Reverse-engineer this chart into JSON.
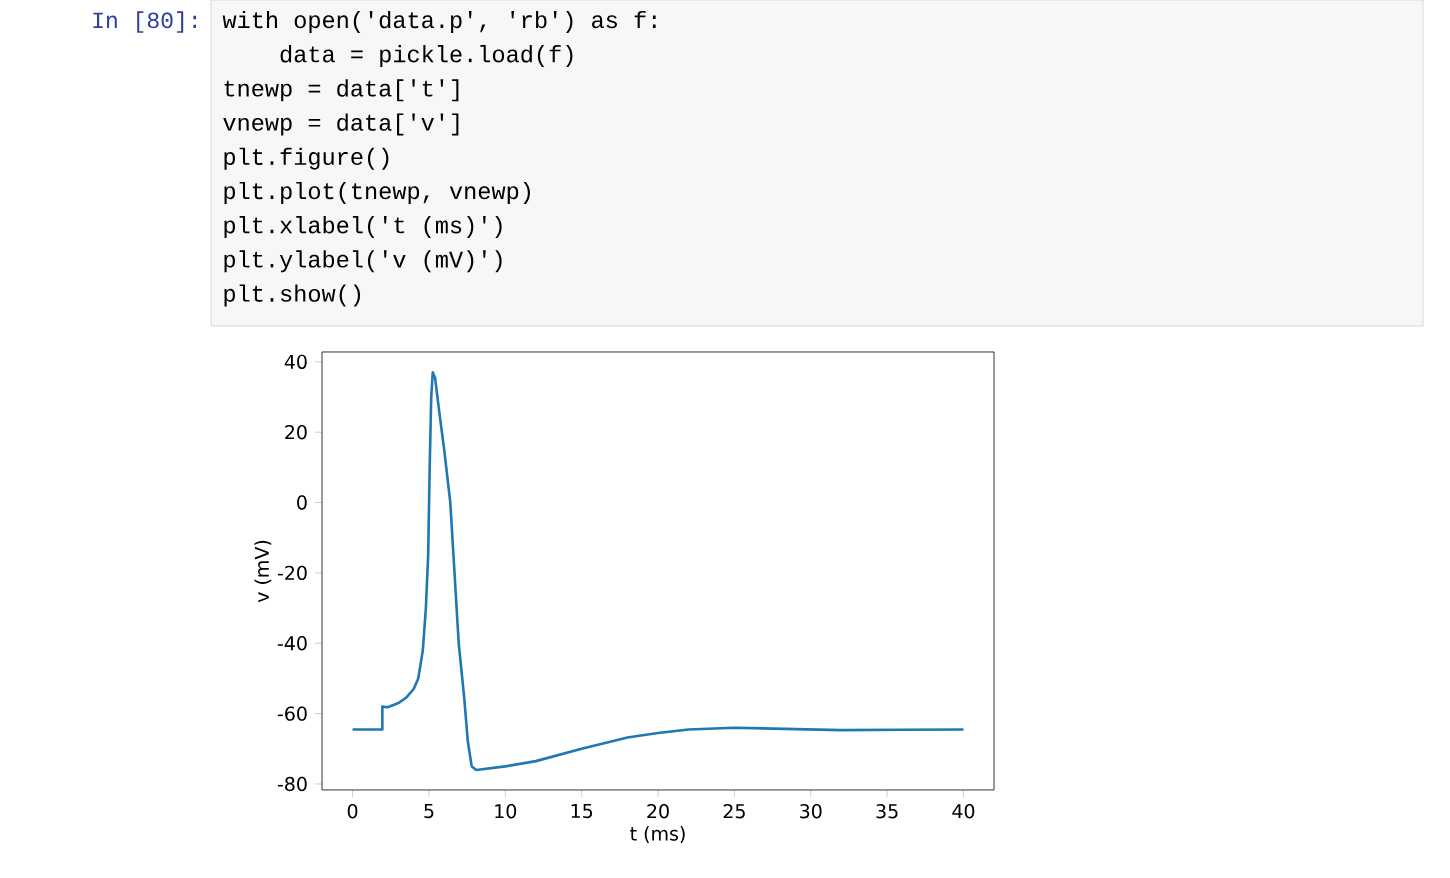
{
  "chart_data": {
    "type": "line",
    "xlabel": "t (ms)",
    "ylabel": "v (mV)",
    "annotations": [
      "In [80]:",
      "with open('data.p', 'rb') as f:",
      "    data = pickle.load(f)",
      "tnewp = data['t']",
      "vnewp = data['v']",
      "plt.figure()",
      "plt.plot(tnewp, vnewp)",
      "plt.xlabel('t (ms)')",
      "plt.ylabel('v (mV)')",
      "plt.show()"
    ],
    "xlim": [
      -2,
      42
    ],
    "ylim": [
      -81.7,
      42.8
    ],
    "xticks": [
      0,
      5,
      10,
      15,
      20,
      25,
      30,
      35,
      40
    ],
    "yticks": [
      -80,
      -60,
      -40,
      -20,
      0,
      20,
      40
    ],
    "grid": false,
    "series": [
      {
        "color": "#1f77b4",
        "x": [
          0,
          1.95,
          1.95,
          2.3,
          3,
          3.5,
          4,
          4.3,
          4.6,
          4.8,
          4.95,
          5.05,
          5.15,
          5.25,
          5.4,
          5.7,
          6.0,
          6.4,
          6.95,
          7.3,
          7.55,
          7.8,
          8.1,
          10,
          12,
          15,
          18,
          20,
          22,
          25,
          28,
          32,
          36,
          40
        ],
        "values": [
          -64.5,
          -64.5,
          -58,
          -58.2,
          -57,
          -55.5,
          -53,
          -50,
          -42,
          -30,
          -15,
          10,
          30,
          37,
          35.5,
          25,
          15,
          0,
          -40,
          -55,
          -68,
          -75,
          -76,
          -75,
          -73.5,
          -70,
          -66.8,
          -65.5,
          -64.5,
          -64,
          -64.3,
          -64.7,
          -64.6,
          -64.5
        ]
      }
    ]
  }
}
